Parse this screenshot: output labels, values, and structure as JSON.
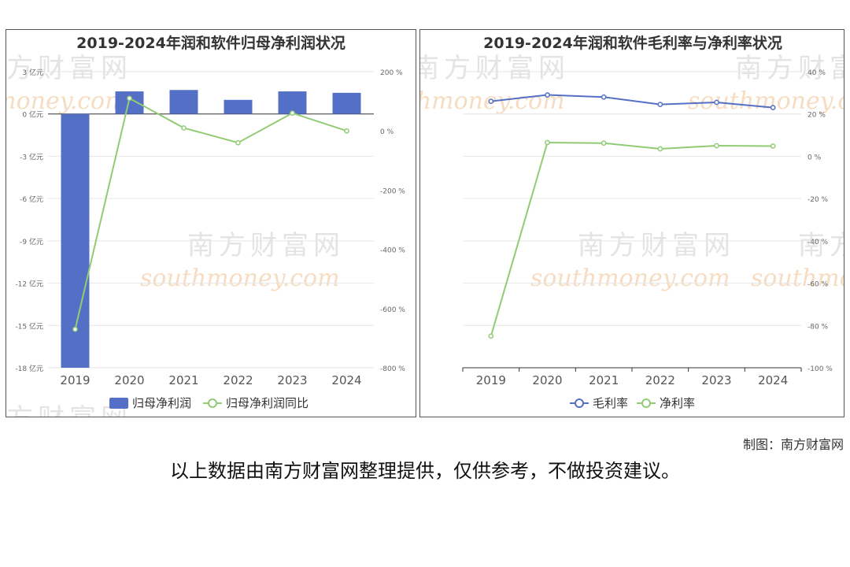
{
  "watermark": {
    "cn": "南方财富网",
    "en": "southmoney.com"
  },
  "credit": "制图：南方财富网",
  "footnote": "以上数据由南方财富网整理提供，仅供参考，不做投资建议。",
  "chart_data": [
    {
      "type": "bar",
      "title": "2019-2024年润和软件归母净利润状况",
      "categories": [
        "2019",
        "2020",
        "2021",
        "2022",
        "2023",
        "2024"
      ],
      "series": [
        {
          "name": "归母净利润",
          "type": "bar",
          "axis": "left",
          "values": [
            -18.0,
            1.6,
            1.7,
            1.0,
            1.6,
            1.5
          ]
        },
        {
          "name": "归母净利润同比",
          "type": "line",
          "axis": "right",
          "values": [
            -670,
            110,
            10,
            -40,
            60,
            0
          ]
        }
      ],
      "y_left": {
        "ticks": [
          3,
          0,
          -3,
          -6,
          -9,
          -12,
          -15,
          -18
        ],
        "tick_labels": [
          "3 亿元",
          "0 亿元",
          "-3 亿元",
          "-6 亿元",
          "-9 亿元",
          "-12 亿元",
          "-15 亿元",
          "-18 亿元"
        ],
        "range": [
          -18,
          3
        ]
      },
      "y_right": {
        "ticks": [
          200,
          0,
          -200,
          -400,
          -600,
          -800
        ],
        "tick_labels": [
          "200 %",
          "0 %",
          "-200 %",
          "-400 %",
          "-600 %",
          "-800 %"
        ],
        "range": [
          -800,
          200
        ]
      },
      "colors": {
        "bar": "#5470c6",
        "line": "#91cc75"
      },
      "legend_position": "bottom",
      "grid": true
    },
    {
      "type": "line",
      "title": "2019-2024年润和软件毛利率与净利率状况",
      "categories": [
        "2019",
        "2020",
        "2021",
        "2022",
        "2023",
        "2024"
      ],
      "series": [
        {
          "name": "毛利率",
          "values": [
            26.0,
            29.0,
            28.0,
            24.5,
            25.5,
            23.0
          ]
        },
        {
          "name": "净利率",
          "values": [
            -85.0,
            6.5,
            6.2,
            3.5,
            5.0,
            4.8
          ]
        }
      ],
      "y_right": {
        "ticks": [
          40,
          20,
          0,
          -20,
          -40,
          -60,
          -80,
          -100
        ],
        "tick_labels": [
          "40 %",
          "20 %",
          "0 %",
          "-20 %",
          "-40 %",
          "-60 %",
          "-80 %",
          "-100 %"
        ],
        "range": [
          -100,
          40
        ]
      },
      "colors": {
        "gross": "#5470c6",
        "net": "#91cc75"
      },
      "legend_position": "bottom",
      "grid": true
    }
  ]
}
